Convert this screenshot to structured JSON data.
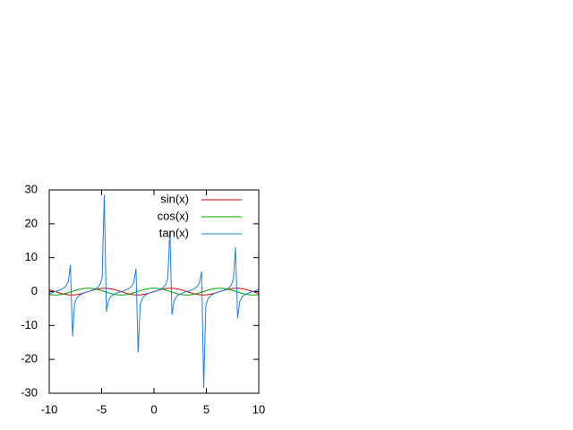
{
  "chart_data": {
    "type": "line",
    "x": [
      -10,
      -9.798,
      -9.596,
      -9.394,
      -9.192,
      -8.99,
      -8.788,
      -8.586,
      -8.384,
      -8.182,
      -7.98,
      -7.778,
      -7.576,
      -7.374,
      -7.172,
      -6.97,
      -6.768,
      -6.566,
      -6.364,
      -6.162,
      -5.96,
      -5.758,
      -5.556,
      -5.354,
      -5.152,
      -4.949,
      -4.747,
      -4.545,
      -4.343,
      -4.141,
      -3.939,
      -3.737,
      -3.535,
      -3.333,
      -3.131,
      -2.929,
      -2.727,
      -2.525,
      -2.323,
      -2.121,
      -1.919,
      -1.717,
      -1.515,
      -1.313,
      -1.111,
      -0.909,
      -0.707,
      -0.505,
      -0.303,
      -0.101,
      0.101,
      0.303,
      0.505,
      0.707,
      0.909,
      1.111,
      1.313,
      1.515,
      1.717,
      1.919,
      2.121,
      2.323,
      2.525,
      2.727,
      2.929,
      3.131,
      3.333,
      3.535,
      3.737,
      3.939,
      4.141,
      4.343,
      4.545,
      4.747,
      4.949,
      5.152,
      5.354,
      5.556,
      5.758,
      5.96,
      6.162,
      6.364,
      6.566,
      6.768,
      6.97,
      7.172,
      7.374,
      7.576,
      7.778,
      7.98,
      8.182,
      8.384,
      8.586,
      8.788,
      8.99,
      9.192,
      9.394,
      9.596,
      9.798,
      10
    ],
    "series": [
      {
        "name": "sin(x)",
        "color": "#cc0000",
        "values": [
          0.544,
          0.365,
          0.17,
          -0.031,
          -0.231,
          -0.421,
          -0.595,
          -0.744,
          -0.863,
          -0.947,
          -0.992,
          -0.997,
          -0.962,
          -0.887,
          -0.776,
          -0.634,
          -0.466,
          -0.279,
          -0.081,
          0.121,
          0.318,
          0.501,
          0.665,
          0.801,
          0.905,
          0.972,
          0.999,
          0.986,
          0.933,
          0.841,
          0.716,
          0.561,
          0.384,
          0.19,
          -0.01,
          -0.211,
          -0.403,
          -0.578,
          -0.73,
          -0.852,
          -0.94,
          -0.989,
          -0.998,
          -0.967,
          -0.896,
          -0.789,
          -0.65,
          -0.484,
          -0.298,
          -0.101,
          0.101,
          0.298,
          0.484,
          0.65,
          0.789,
          0.896,
          0.967,
          0.998,
          0.989,
          0.94,
          0.852,
          0.73,
          0.578,
          0.403,
          0.211,
          0.01,
          -0.19,
          -0.384,
          -0.561,
          -0.716,
          -0.841,
          -0.933,
          -0.986,
          -0.999,
          -0.972,
          -0.905,
          -0.801,
          -0.665,
          -0.501,
          -0.318,
          -0.121,
          0.081,
          0.279,
          0.466,
          0.634,
          0.776,
          0.887,
          0.962,
          0.997,
          0.992,
          0.947,
          0.863,
          0.744,
          0.595,
          0.421,
          0.231,
          0.031,
          -0.17,
          -0.365,
          -0.544
        ]
      },
      {
        "name": "cos(x)",
        "color": "#00a000",
        "values": [
          -0.839,
          -0.931,
          -0.985,
          -1,
          -0.973,
          -0.907,
          -0.804,
          -0.668,
          -0.506,
          -0.323,
          -0.126,
          0.076,
          0.274,
          0.462,
          0.63,
          0.773,
          0.885,
          0.96,
          0.997,
          0.993,
          0.948,
          0.865,
          0.747,
          0.598,
          0.426,
          0.235,
          0.035,
          -0.166,
          -0.361,
          -0.541,
          -0.698,
          -0.828,
          -0.924,
          -0.982,
          -1,
          -0.978,
          -0.915,
          -0.816,
          -0.683,
          -0.523,
          -0.341,
          -0.146,
          0.056,
          0.255,
          0.444,
          0.615,
          0.76,
          0.875,
          0.954,
          0.995,
          0.995,
          0.954,
          0.875,
          0.76,
          0.615,
          0.444,
          0.255,
          0.056,
          -0.146,
          -0.341,
          -0.523,
          -0.683,
          -0.816,
          -0.915,
          -0.978,
          -1,
          -0.982,
          -0.924,
          -0.828,
          -0.698,
          -0.541,
          -0.361,
          -0.166,
          0.035,
          0.235,
          0.426,
          0.598,
          0.747,
          0.865,
          0.948,
          0.993,
          0.997,
          0.96,
          0.885,
          0.773,
          0.63,
          0.462,
          0.274,
          0.076,
          -0.126,
          -0.323,
          -0.506,
          -0.668,
          -0.804,
          -0.907,
          -0.973,
          -1,
          -0.985,
          -0.931,
          -0.839
        ]
      },
      {
        "name": "tan(x)",
        "color": "#1f7fe0",
        "values": [
          -0.648,
          -0.392,
          -0.173,
          0.031,
          0.237,
          0.464,
          0.739,
          1.113,
          1.706,
          2.933,
          7.893,
          -13.14,
          -3.504,
          -1.918,
          -1.232,
          -0.82,
          -0.527,
          -0.291,
          -0.081,
          0.122,
          0.335,
          0.58,
          0.89,
          1.339,
          2.126,
          4.138,
          28.49,
          -5.934,
          -2.586,
          -1.556,
          -1.025,
          -0.678,
          -0.415,
          -0.194,
          0.01,
          0.216,
          0.44,
          0.709,
          1.068,
          1.629,
          2.753,
          6.781,
          -17.95,
          -3.794,
          -2.019,
          -1.283,
          -0.855,
          -0.553,
          -0.313,
          -0.101,
          0.101,
          0.313,
          0.553,
          0.855,
          1.283,
          2.019,
          3.794,
          17.95,
          -6.781,
          -2.753,
          -1.629,
          -1.068,
          -0.709,
          -0.44,
          -0.216,
          -0.01,
          0.194,
          0.415,
          0.678,
          1.025,
          1.556,
          2.586,
          5.934,
          -28.49,
          -4.138,
          -2.126,
          -1.339,
          -0.89,
          -0.58,
          -0.335,
          -0.122,
          0.081,
          0.291,
          0.527,
          0.82,
          1.232,
          1.918,
          3.504,
          13.14,
          -7.893,
          -2.933,
          -1.706,
          -1.113,
          -0.739,
          -0.464,
          -0.237,
          -0.031,
          0.173,
          0.392,
          0.648
        ]
      }
    ],
    "xlim": [
      -10,
      10
    ],
    "xticks": [
      -10,
      -5,
      0,
      5,
      10
    ],
    "ylim": [
      -30,
      30
    ],
    "yticks": [
      -30,
      -20,
      -10,
      0,
      10,
      20,
      30
    ],
    "legend": "top-right"
  }
}
